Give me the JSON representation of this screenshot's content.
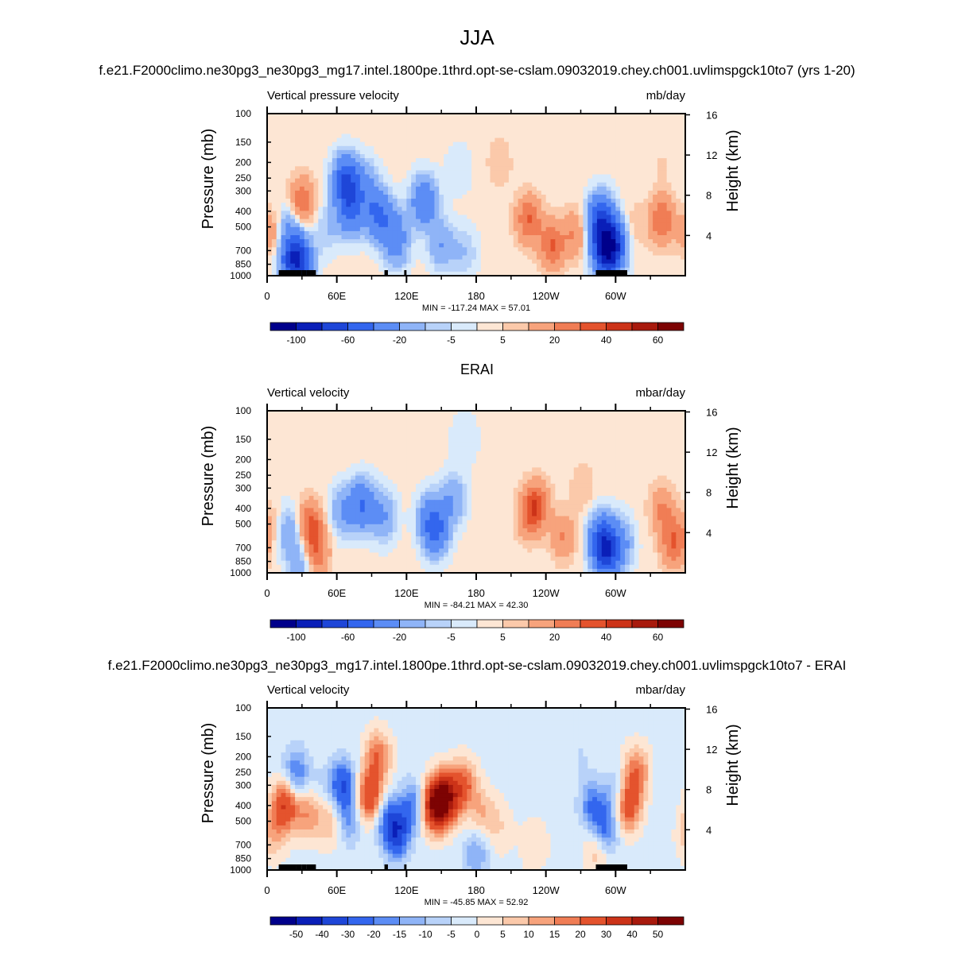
{
  "main_title": "JJA",
  "subtitles": [
    "f.e21.F2000climo.ne30pg3_ne30pg3_mg17.intel.1800pe.1thrd.opt-se-cslam.09032019.chey.ch001.uvlimspgck10to7 (yrs 1-20)",
    "ERAI",
    "f.e21.F2000climo.ne30pg3_ne30pg3_mg17.intel.1800pe.1thrd.opt-se-cslam.09032019.chey.ch001.uvlimspgck10to7 - ERAI"
  ],
  "chart_data": [
    {
      "type": "heatmap",
      "panel": "model",
      "left_label": "Vertical pressure velocity",
      "right_label": "mb/day",
      "ylabel": "Pressure (mb)",
      "y2label": "Height (km)",
      "yticks": [
        "100",
        "150",
        "200",
        "250",
        "300",
        "400",
        "500",
        "700",
        "850",
        "1000"
      ],
      "y2ticks": [
        "16",
        "12",
        "8",
        "4"
      ],
      "xticks": [
        "0",
        "60E",
        "120E",
        "180",
        "120W",
        "60W"
      ],
      "stats": "MIN = -117.24  MAX =  57.01",
      "colorbar_labels": [
        "-100",
        "-60",
        "-20",
        "-5",
        "5",
        "20",
        "40",
        "60"
      ],
      "features": [
        {
          "lon": 5,
          "lev": 550,
          "value": 20
        },
        {
          "lon": 18,
          "lev": 500,
          "value": -20
        },
        {
          "lon": 30,
          "lev": 350,
          "value": 30
        },
        {
          "lon": 28,
          "lev": 820,
          "value": -60
        },
        {
          "lon": 20,
          "lev": 780,
          "value": -40
        },
        {
          "lon": 52,
          "lev": 500,
          "value": -10
        },
        {
          "lon": 68,
          "lev": 260,
          "value": -60
        },
        {
          "lon": 72,
          "lev": 400,
          "value": -40
        },
        {
          "lon": 85,
          "lev": 280,
          "value": -20
        },
        {
          "lon": 95,
          "lev": 420,
          "value": -40
        },
        {
          "lon": 108,
          "lev": 500,
          "value": -20
        },
        {
          "lon": 112,
          "lev": 650,
          "value": -20
        },
        {
          "lon": 135,
          "lev": 350,
          "value": -40
        },
        {
          "lon": 150,
          "lev": 650,
          "value": -20
        },
        {
          "lon": 170,
          "lev": 720,
          "value": -10
        },
        {
          "lon": 165,
          "lev": 220,
          "value": -5
        },
        {
          "lon": 200,
          "lev": 200,
          "value": 10
        },
        {
          "lon": 225,
          "lev": 450,
          "value": 30
        },
        {
          "lon": 245,
          "lev": 650,
          "value": 30
        },
        {
          "lon": 265,
          "lev": 550,
          "value": 20
        },
        {
          "lon": 287,
          "lev": 450,
          "value": -60
        },
        {
          "lon": 292,
          "lev": 700,
          "value": -100
        },
        {
          "lon": 300,
          "lev": 620,
          "value": -40
        },
        {
          "lon": 315,
          "lev": 500,
          "value": 10
        },
        {
          "lon": 340,
          "lev": 450,
          "value": 30
        },
        {
          "lon": 340,
          "lev": 200,
          "value": 5
        }
      ],
      "topography": [
        [
          10,
          25
        ],
        [
          25,
          30
        ],
        [
          30,
          34
        ],
        [
          34,
          42
        ],
        [
          101,
          104
        ],
        [
          118,
          120
        ],
        [
          283,
          310
        ]
      ]
    },
    {
      "type": "heatmap",
      "panel": "ERAI",
      "left_label": "Vertical velocity",
      "right_label": "mbar/day",
      "ylabel": "Pressure (mb)",
      "y2label": "Height (km)",
      "yticks": [
        "100",
        "150",
        "200",
        "250",
        "300",
        "400",
        "500",
        "700",
        "850",
        "1000"
      ],
      "y2ticks": [
        "16",
        "12",
        "8",
        "4"
      ],
      "xticks": [
        "0",
        "60E",
        "120E",
        "180",
        "120W",
        "60W"
      ],
      "stats": "MIN = -84.21  MAX =  42.30",
      "colorbar_labels": [
        "-100",
        "-60",
        "-20",
        "-5",
        "5",
        "20",
        "40",
        "60"
      ],
      "features": [
        {
          "lon": 5,
          "lev": 500,
          "value": 10
        },
        {
          "lon": 18,
          "lev": 550,
          "value": -20
        },
        {
          "lon": 37,
          "lev": 500,
          "value": 30
        },
        {
          "lon": 42,
          "lev": 750,
          "value": 30
        },
        {
          "lon": 30,
          "lev": 850,
          "value": -20
        },
        {
          "lon": 65,
          "lev": 420,
          "value": -20
        },
        {
          "lon": 82,
          "lev": 380,
          "value": -40
        },
        {
          "lon": 100,
          "lev": 450,
          "value": -20
        },
        {
          "lon": 140,
          "lev": 450,
          "value": -20
        },
        {
          "lon": 145,
          "lev": 550,
          "value": -40
        },
        {
          "lon": 160,
          "lev": 350,
          "value": -20
        },
        {
          "lon": 170,
          "lev": 150,
          "value": -5
        },
        {
          "lon": 225,
          "lev": 450,
          "value": 20
        },
        {
          "lon": 232,
          "lev": 380,
          "value": 30
        },
        {
          "lon": 255,
          "lev": 600,
          "value": 20
        },
        {
          "lon": 272,
          "lev": 300,
          "value": 10
        },
        {
          "lon": 288,
          "lev": 600,
          "value": -40
        },
        {
          "lon": 292,
          "lev": 750,
          "value": -60
        },
        {
          "lon": 305,
          "lev": 650,
          "value": -20
        },
        {
          "lon": 340,
          "lev": 400,
          "value": 20
        },
        {
          "lon": 350,
          "lev": 650,
          "value": 30
        }
      ]
    },
    {
      "type": "heatmap",
      "panel": "difference",
      "left_label": "Vertical velocity",
      "right_label": "mbar/day",
      "ylabel": "Pressure (mb)",
      "y2label": "Height (km)",
      "yticks": [
        "100",
        "150",
        "200",
        "250",
        "300",
        "400",
        "500",
        "700",
        "850",
        "1000"
      ],
      "y2ticks": [
        "16",
        "12",
        "8",
        "4"
      ],
      "xticks": [
        "0",
        "60E",
        "120E",
        "180",
        "120W",
        "60W"
      ],
      "stats": "MIN = -45.85  MAX =  52.92",
      "colorbar_labels": [
        "-50",
        "-40",
        "-30",
        "-20",
        "-15",
        "-10",
        "-5",
        "0",
        "5",
        "10",
        "15",
        "20",
        "30",
        "40",
        "50"
      ],
      "features": [
        {
          "lon": 5,
          "lev": 600,
          "value": 10
        },
        {
          "lon": 15,
          "lev": 400,
          "value": 30
        },
        {
          "lon": 25,
          "lev": 250,
          "value": -20
        },
        {
          "lon": 35,
          "lev": 450,
          "value": 15
        },
        {
          "lon": 45,
          "lev": 300,
          "value": -5
        },
        {
          "lon": 55,
          "lev": 500,
          "value": 10
        },
        {
          "lon": 65,
          "lev": 300,
          "value": -30
        },
        {
          "lon": 70,
          "lev": 500,
          "value": -15
        },
        {
          "lon": 88,
          "lev": 350,
          "value": 30
        },
        {
          "lon": 95,
          "lev": 200,
          "value": 20
        },
        {
          "lon": 105,
          "lev": 500,
          "value": -20
        },
        {
          "lon": 112,
          "lev": 600,
          "value": -30
        },
        {
          "lon": 125,
          "lev": 400,
          "value": -20
        },
        {
          "lon": 145,
          "lev": 400,
          "value": 50
        },
        {
          "lon": 155,
          "lev": 350,
          "value": 40
        },
        {
          "lon": 170,
          "lev": 300,
          "value": 20
        },
        {
          "lon": 185,
          "lev": 450,
          "value": 10
        },
        {
          "lon": 200,
          "lev": 550,
          "value": 5
        },
        {
          "lon": 180,
          "lev": 800,
          "value": -15
        },
        {
          "lon": 230,
          "lev": 700,
          "value": 5
        },
        {
          "lon": 270,
          "lev": 200,
          "value": -5
        },
        {
          "lon": 280,
          "lev": 400,
          "value": -20
        },
        {
          "lon": 286,
          "lev": 700,
          "value": 20
        },
        {
          "lon": 290,
          "lev": 600,
          "value": -30
        },
        {
          "lon": 300,
          "lev": 350,
          "value": -15
        },
        {
          "lon": 310,
          "lev": 400,
          "value": 30
        },
        {
          "lon": 318,
          "lev": 250,
          "value": 20
        },
        {
          "lon": 340,
          "lev": 300,
          "value": -5
        }
      ],
      "topography": [
        [
          10,
          25
        ],
        [
          25,
          30
        ],
        [
          30,
          34
        ],
        [
          34,
          42
        ],
        [
          101,
          104
        ],
        [
          118,
          120
        ],
        [
          283,
          310
        ]
      ]
    }
  ],
  "colors": {
    "cb_abs": [
      "#00008b",
      "#0a1fb8",
      "#1e46d8",
      "#3366ee",
      "#5c8df5",
      "#8fb4f7",
      "#b8d2f9",
      "#d9eafb",
      "#fde6d4",
      "#fbc9aa",
      "#f7a37c",
      "#f07d55",
      "#e4532d",
      "#cc3318",
      "#a81a0d",
      "#7d0303"
    ],
    "cb_diff": [
      "#00008b",
      "#0a1fb8",
      "#1e46d8",
      "#3366ee",
      "#5c8df5",
      "#8fb4f7",
      "#b8d2f9",
      "#d9eafb",
      "#fde6d4",
      "#fbc9aa",
      "#f7a37c",
      "#f07d55",
      "#e4532d",
      "#cc3318",
      "#a81a0d",
      "#7d0303"
    ]
  }
}
